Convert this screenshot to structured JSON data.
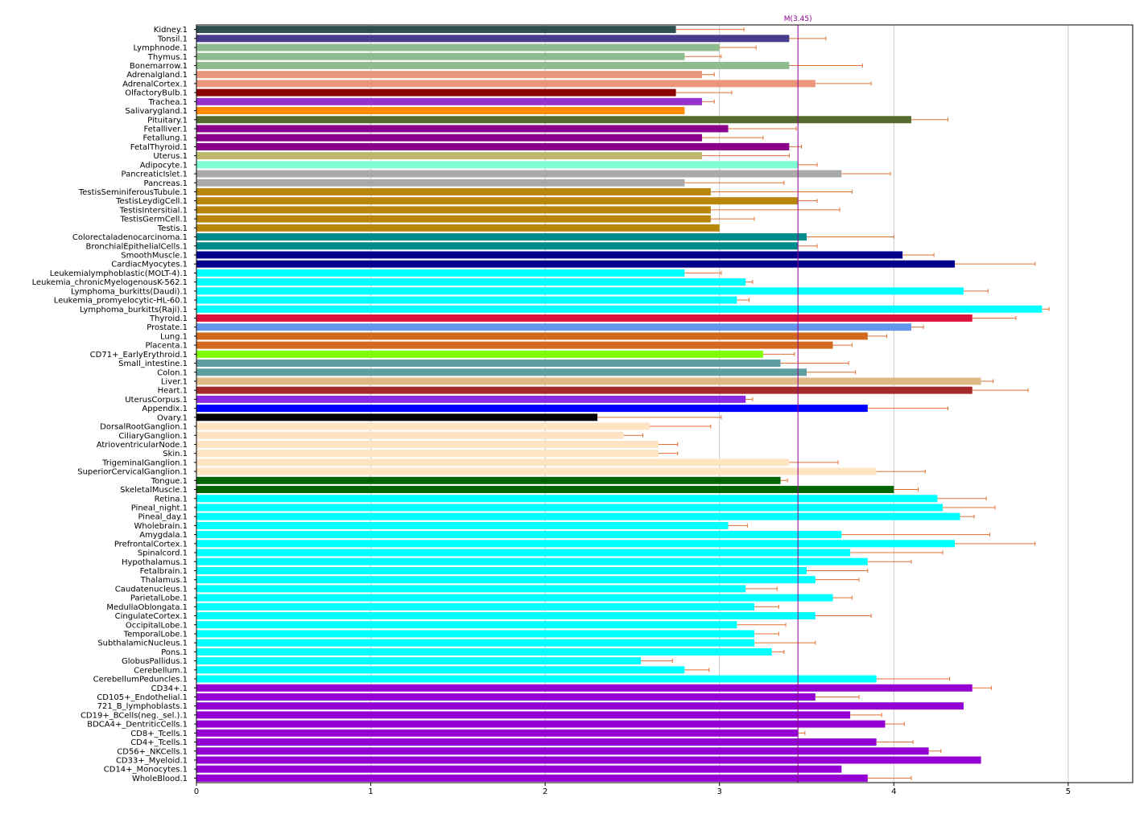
{
  "chart_data": {
    "type": "bar",
    "orientation": "horizontal",
    "title": "",
    "xlabel": "",
    "ylabel": "",
    "xlim": [
      0,
      5.37
    ],
    "xticks": [
      0,
      1,
      2,
      3,
      4,
      5
    ],
    "grid": "x",
    "legend": "none",
    "median_line": {
      "label": "M(3.45)",
      "value": 3.45,
      "color": "#8b008b"
    },
    "error_color": "#e07030",
    "categories": [
      "Kidney.1",
      "Tonsil.1",
      "Lymphnode.1",
      "Thymus.1",
      "Bonemarrow.1",
      "Adrenalgland.1",
      "AdrenalCortex.1",
      "OlfactoryBulb.1",
      "Trachea.1",
      "Salivarygland.1",
      "Pituitary.1",
      "Fetalliver.1",
      "Fetallung.1",
      "FetalThyroid.1",
      "Uterus.1",
      "Adipocyte.1",
      "PancreaticIslet.1",
      "Pancreas.1",
      "TestisSeminiferousTubule.1",
      "TestisLeydigCell.1",
      "TestisIntersitial.1",
      "TestisGermCell.1",
      "Testis.1",
      "Colorectaladenocarcinoma.1",
      "BronchialEpithelialCells.1",
      "SmoothMuscle.1",
      "CardiacMyocytes.1",
      "Leukemialymphoblastic(MOLT-4).1",
      "Leukemia_chronicMyelogenousK-562.1",
      "Lymphoma_burkitts(Daudi).1",
      "Leukemia_promyelocytic-HL-60.1",
      "Lymphoma_burkitts(Raji).1",
      "Thyroid.1",
      "Prostate.1",
      "Lung.1",
      "Placenta.1",
      "CD71+_EarlyErythroid.1",
      "Small_intestine.1",
      "Colon.1",
      "Liver.1",
      "Heart.1",
      "UterusCorpus.1",
      "Appendix.1",
      "Ovary.1",
      "DorsalRootGanglion.1",
      "CiliaryGanglion.1",
      "AtrioventricularNode.1",
      "Skin.1",
      "TrigeminalGanglion.1",
      "SuperiorCervicalGanglion.1",
      "Tongue.1",
      "SkeletalMuscle.1",
      "Retina.1",
      "Pineal_night.1",
      "Pineal_day.1",
      "Wholebrain.1",
      "Amygdala.1",
      "PrefrontalCortex.1",
      "Spinalcord.1",
      "Hypothalamus.1",
      "Fetalbrain.1",
      "Thalamus.1",
      "Caudatenucleus.1",
      "ParietalLobe.1",
      "MedullaOblongata.1",
      "CingulateCortex.1",
      "OccipitalLobe.1",
      "TemporalLobe.1",
      "SubthalamicNucleus.1",
      "Pons.1",
      "GlobusPallidus.1",
      "Cerebellum.1",
      "CerebellumPeduncles.1",
      "CD34+.1",
      "CD105+_Endothelial.1",
      "721_B_lymphoblasts.1",
      "CD19+_BCells(neg._sel.).1",
      "BDCA4+_DentriticCells.1",
      "CD8+_Tcells.1",
      "CD4+_Tcells.1",
      "CD56+_NKCells.1",
      "CD33+_Myeloid.1",
      "CD14+_Monocytes.1",
      "WholeBlood.1"
    ],
    "values": [
      2.75,
      3.4,
      3.0,
      2.8,
      3.4,
      2.9,
      3.55,
      2.75,
      2.9,
      2.8,
      4.1,
      3.05,
      2.9,
      3.4,
      2.9,
      3.45,
      3.7,
      2.8,
      2.95,
      3.45,
      2.95,
      2.95,
      3.0,
      3.5,
      3.45,
      4.05,
      4.35,
      2.8,
      3.15,
      4.4,
      3.1,
      4.85,
      4.45,
      4.1,
      3.85,
      3.65,
      3.25,
      3.35,
      3.5,
      4.5,
      4.45,
      3.15,
      3.85,
      2.3,
      2.6,
      2.45,
      2.65,
      2.65,
      3.4,
      3.9,
      3.35,
      4.0,
      4.25,
      4.28,
      4.38,
      3.05,
      3.7,
      4.35,
      3.75,
      3.85,
      3.5,
      3.55,
      3.15,
      3.65,
      3.2,
      3.55,
      3.1,
      3.2,
      3.2,
      3.3,
      2.55,
      2.8,
      3.9,
      4.45,
      3.55,
      4.4,
      3.75,
      3.95,
      3.45,
      3.9,
      4.2,
      4.5,
      3.7,
      3.85
    ],
    "errors": [
      0.39,
      0.21,
      0.21,
      0.21,
      0.42,
      0.07,
      0.32,
      0.32,
      0.07,
      0.0,
      0.21,
      0.39,
      0.35,
      0.07,
      0.5,
      0.11,
      0.28,
      0.57,
      0.81,
      0.11,
      0.74,
      0.25,
      0.0,
      0.5,
      0.11,
      0.18,
      0.46,
      0.21,
      0.04,
      0.14,
      0.07,
      0.04,
      0.25,
      0.07,
      0.11,
      0.11,
      0.18,
      0.39,
      0.28,
      0.07,
      0.32,
      0.04,
      0.46,
      0.71,
      0.35,
      0.11,
      0.11,
      0.11,
      0.28,
      0.28,
      0.04,
      0.14,
      0.28,
      0.3,
      0.08,
      0.11,
      0.85,
      0.46,
      0.53,
      0.25,
      0.35,
      0.25,
      0.18,
      0.11,
      0.14,
      0.32,
      0.28,
      0.14,
      0.35,
      0.07,
      0.18,
      0.14,
      0.42,
      0.11,
      0.25,
      0.0,
      0.18,
      0.11,
      0.04,
      0.21,
      0.07,
      0.0,
      0.0,
      0.25
    ],
    "colors": [
      "#2f4f4f",
      "#483d8b",
      "#8fbc8f",
      "#8fbc8f",
      "#8fbc8f",
      "#e9967a",
      "#e9967a",
      "#8b0000",
      "#9932cc",
      "#ff8c00",
      "#556b2f",
      "#8b008b",
      "#8b008b",
      "#8b008b",
      "#bdb76b",
      "#7fffd4",
      "#a9a9a9",
      "#a9a9a9",
      "#b8860b",
      "#b8860b",
      "#b8860b",
      "#b8860b",
      "#b8860b",
      "#008b8b",
      "#008b8b",
      "#00008b",
      "#00008b",
      "#00ffff",
      "#00ffff",
      "#00ffff",
      "#00ffff",
      "#00ffff",
      "#dc143c",
      "#6495ed",
      "#d2691e",
      "#d2691e",
      "#7fff00",
      "#5f9ea0",
      "#5f9ea0",
      "#deb887",
      "#a52a2a",
      "#8a2be2",
      "#0000ff",
      "#000000",
      "#ffe4c4",
      "#ffe4c4",
      "#ffe4c4",
      "#ffe4c4",
      "#ffe4c4",
      "#ffe4c4",
      "#006400",
      "#006400",
      "#00ffff",
      "#00ffff",
      "#00ffff",
      "#00ffff",
      "#00ffff",
      "#00ffff",
      "#00ffff",
      "#00ffff",
      "#00ffff",
      "#00ffff",
      "#00ffff",
      "#00ffff",
      "#00ffff",
      "#00ffff",
      "#00ffff",
      "#00ffff",
      "#00ffff",
      "#00ffff",
      "#00ffff",
      "#00ffff",
      "#00ffff",
      "#9400d3",
      "#9400d3",
      "#9400d3",
      "#9400d3",
      "#9400d3",
      "#9400d3",
      "#9400d3",
      "#9400d3",
      "#9400d3",
      "#9400d3",
      "#9400d3"
    ]
  }
}
